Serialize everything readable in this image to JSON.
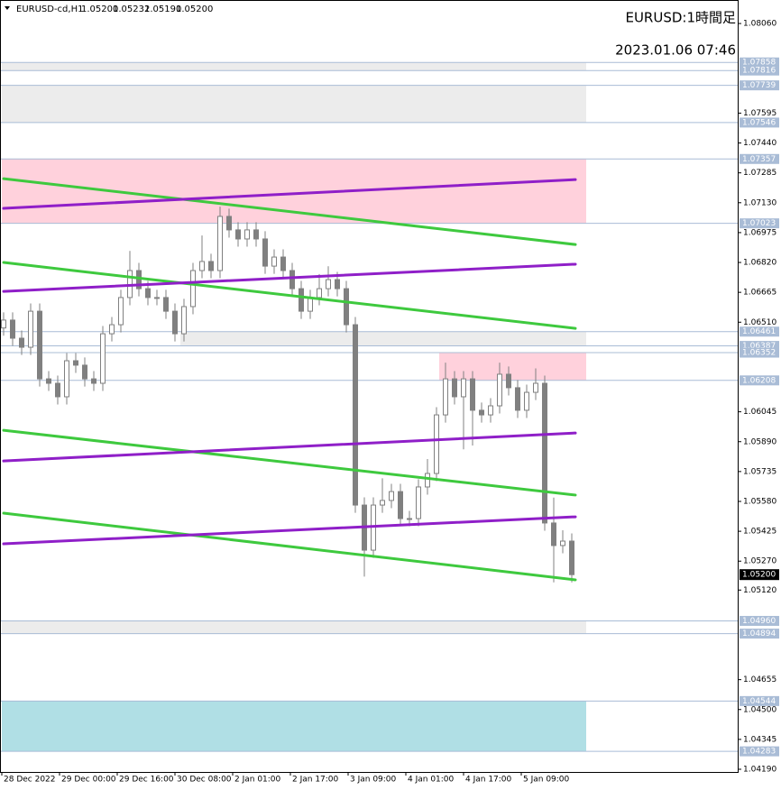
{
  "chart_data": {
    "type": "candlestick",
    "symbol": "EURUSD-cd,H1",
    "ohlc": [
      {
        "value": 1.052,
        "label": "1.05200"
      },
      1.05232,
      {
        "value": 1.0519,
        "label": "1.05190"
      },
      {
        "value": 1.052,
        "label": "1.05200"
      }
    ],
    "title": "EURUSD:1時間足",
    "timestamp": "2023.01.06 07:46",
    "x_labels": [
      "28 Dec 2022",
      "29 Dec 00:00",
      "29 Dec 16:00",
      "30 Dec 08:00",
      "2 Jan 01:00",
      "2 Jan 17:00",
      "3 Jan 09:00",
      "4 Jan 01:00",
      "4 Jan 17:00",
      "5 Jan 09:00"
    ],
    "ylim": [
      1.04176,
      1.08182
    ],
    "yticks": [
      {
        "value": 1.0806,
        "label": "1.08060"
      },
      1.07595,
      {
        "value": 1.0744,
        "label": "1.07440"
      },
      1.07285,
      {
        "value": 1.0713,
        "label": "1.07130"
      },
      1.06975,
      {
        "value": 1.0682,
        "label": "1.06820"
      },
      1.06665,
      {
        "value": 1.0651,
        "label": "1.06510"
      },
      1.06045,
      {
        "value": 1.0589,
        "label": "1.05890"
      },
      1.05735,
      {
        "value": 1.0558,
        "label": "1.05580"
      },
      1.05425,
      {
        "value": 1.0527,
        "label": "1.05270"
      },
      {
        "value": 1.0512,
        "label": "1.05120"
      },
      1.04655,
      {
        "value": 1.045,
        "label": "1.04500"
      },
      1.04345,
      {
        "value": 1.0419,
        "label": "1.04190"
      }
    ],
    "up_color": "#ffffff",
    "down_color": "#808080",
    "candles": [
      [
        1.0648,
        1.06561,
        1.0644,
        1.06521
      ],
      [
        1.06521,
        1.06561,
        1.06387,
        1.06427
      ],
      [
        1.06427,
        1.06467,
        1.0634,
        1.0638
      ],
      [
        1.0638,
        1.06607,
        1.0634,
        1.06567
      ],
      [
        1.06567,
        1.06607,
        1.06176,
        1.06216
      ],
      [
        1.06216,
        1.06256,
        1.06153,
        1.06193
      ],
      [
        1.06193,
        1.06233,
        1.06083,
        1.06123
      ],
      [
        1.06123,
        1.0635,
        1.06083,
        1.0631
      ],
      [
        1.0631,
        1.0635,
        1.06247,
        1.06287
      ],
      [
        1.06287,
        1.06327,
        1.06176,
        1.06216
      ],
      [
        1.06216,
        1.06256,
        1.06153,
        1.06193
      ],
      [
        1.06193,
        1.0649,
        1.06153,
        1.0645
      ],
      [
        1.0645,
        1.06537,
        1.0641,
        1.06497
      ],
      [
        1.06497,
        1.06678,
        1.06457,
        1.06638
      ],
      [
        1.06638,
        1.0688,
        1.06598,
        1.06778
      ],
      [
        1.06778,
        1.06818,
        1.06644,
        1.06684
      ],
      [
        1.06684,
        1.06724,
        1.06598,
        1.06638
      ],
      [
        1.06638,
        1.06678,
        1.06598,
        1.06638
      ],
      [
        1.06638,
        1.06678,
        1.06527,
        1.06567
      ],
      [
        1.06567,
        1.06607,
        1.0641,
        1.0645
      ],
      [
        1.0645,
        1.06631,
        1.0641,
        1.06591
      ],
      [
        1.06591,
        1.06818,
        1.06551,
        1.06778
      ],
      [
        1.06778,
        1.0696,
        1.06738,
        1.06825
      ],
      [
        1.06825,
        1.06865,
        1.06738,
        1.06778
      ],
      [
        1.06778,
        1.0711,
        1.06738,
        1.07059
      ],
      [
        1.07059,
        1.07099,
        1.06949,
        1.06989
      ],
      [
        1.06989,
        1.07029,
        1.06902,
        1.06942
      ],
      [
        1.06942,
        1.07029,
        1.06902,
        1.06989
      ],
      [
        1.06989,
        1.07029,
        1.06902,
        1.06942
      ],
      [
        1.06942,
        1.06982,
        1.06761,
        1.06801
      ],
      [
        1.06801,
        1.06888,
        1.06761,
        1.06848
      ],
      [
        1.06848,
        1.06888,
        1.06738,
        1.06778
      ],
      [
        1.06778,
        1.06818,
        1.06644,
        1.06684
      ],
      [
        1.06684,
        1.06724,
        1.06527,
        1.06567
      ],
      [
        1.06567,
        1.06678,
        1.06527,
        1.06638
      ],
      [
        1.06638,
        1.0676,
        1.06598,
        1.06684
      ],
      [
        1.06684,
        1.068,
        1.06644,
        1.06731
      ],
      [
        1.06731,
        1.06771,
        1.06644,
        1.06684
      ],
      [
        1.06684,
        1.06724,
        1.06457,
        1.06497
      ],
      [
        1.06497,
        1.06537,
        1.05521,
        1.05561
      ],
      [
        1.05561,
        1.05601,
        1.0519,
        1.05327
      ],
      [
        1.05327,
        1.05601,
        1.05287,
        1.05561
      ],
      [
        1.05561,
        1.057,
        1.05521,
        1.05585
      ],
      [
        1.05585,
        1.05671,
        1.05545,
        1.05631
      ],
      [
        1.05631,
        1.05671,
        1.05451,
        1.05491
      ],
      [
        1.05491,
        1.05531,
        1.05451,
        1.05491
      ],
      [
        1.05491,
        1.05695,
        1.05451,
        1.05655
      ],
      [
        1.05655,
        1.058,
        1.05615,
        1.05725
      ],
      [
        1.05725,
        1.06069,
        1.05685,
        1.06029
      ],
      [
        1.06029,
        1.063,
        1.05989,
        1.06216
      ],
      [
        1.06216,
        1.06256,
        1.06083,
        1.06123
      ],
      [
        1.06123,
        1.06256,
        1.0585,
        1.06216
      ],
      [
        1.06216,
        1.06256,
        1.0587,
        1.06053
      ],
      [
        1.06053,
        1.06093,
        1.05989,
        1.06029
      ],
      [
        1.06029,
        1.06116,
        1.05989,
        1.06076
      ],
      [
        1.06076,
        1.063,
        1.06036,
        1.0624
      ],
      [
        1.0624,
        1.0628,
        1.0613,
        1.0617
      ],
      [
        1.0617,
        1.0621,
        1.06013,
        1.06053
      ],
      [
        1.06053,
        1.06186,
        1.06013,
        1.06146
      ],
      [
        1.06146,
        1.0627,
        1.06106,
        1.06193
      ],
      [
        1.06193,
        1.06233,
        1.05428,
        1.05468
      ],
      [
        1.05468,
        1.056,
        1.0516,
        1.05351
      ],
      [
        1.05351,
        1.0543,
        1.05311,
        1.05374
      ],
      [
        1.05374,
        1.05414,
        1.0516,
        1.052
      ]
    ],
    "zones": [
      {
        "top": 1.07858,
        "bottom": 1.07816,
        "color": "#ececec"
      },
      {
        "top": 1.07739,
        "bottom": 1.07546,
        "color": "#ececec"
      },
      {
        "top": 1.07357,
        "bottom": 1.07023,
        "color": "#ffd1dc"
      },
      {
        "top": 1.06461,
        "bottom": 1.06387,
        "color": "#ececec"
      },
      {
        "top": 1.06352,
        "bottom": 1.06208,
        "color": "#ffd1dc"
      },
      {
        "top": {
          "value": 1.0496,
          "label": "1.04960"
        },
        "bottom": 1.04894,
        "color": "#ececec"
      },
      {
        "top": 1.04544,
        "bottom": 1.04283,
        "color": "#b0dfe5"
      }
    ],
    "level_color": "#a9bcd6",
    "trendlines": [
      {
        "start": 1.07255,
        "end": 1.06913,
        "color": "#3ec93e"
      },
      {
        "start": 1.0682,
        "end": 1.06478,
        "color": "#3ec93e"
      },
      {
        "start": 1.05949,
        "end": 1.05613,
        "color": "#3ec93e"
      },
      {
        "start": 1.05519,
        "end": 1.05173,
        "color": "#3ec93e"
      },
      {
        "start": 1.07101,
        "end": 1.0725,
        "color": "#8f1fc8"
      },
      {
        "start": 1.0667,
        "end": 1.06811,
        "color": "#8f1fc8"
      },
      {
        "start": 1.0579,
        "end": 1.05935,
        "color": "#8f1fc8"
      },
      {
        "start": 1.0536,
        "end": 1.055,
        "color": "#8f1fc8"
      }
    ],
    "bid": {
      "value": 1.052,
      "label": "1.05200"
    }
  }
}
